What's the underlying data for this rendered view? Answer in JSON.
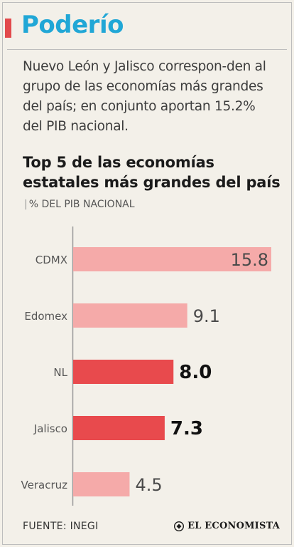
{
  "header": {
    "title": "Poderío"
  },
  "lede": "Nuevo León y Jalisco correspon-den al grupo de las economías más grandes del país; en conjunto aportan 15.2% del PIB nacional.",
  "chart_data": {
    "type": "bar",
    "orientation": "horizontal",
    "title": "Top 5 de las economías estatales más grandes del país",
    "subtitle": "% DEL PIB NACIONAL",
    "categories": [
      "CDMX",
      "Edomex",
      "NL",
      "Jalisco",
      "Veracruz"
    ],
    "values": [
      15.8,
      9.1,
      8.0,
      7.3,
      4.5
    ],
    "value_labels": [
      "15.8",
      "9.1",
      "8.0",
      "7.3",
      "4.5"
    ],
    "highlighted": [
      "NL",
      "Jalisco"
    ],
    "colors": {
      "bar": "#f5aaa9",
      "bar_highlight": "#e84a4d",
      "axis": "#9a9a9a"
    },
    "grid": false,
    "legend": "none"
  },
  "footer": {
    "source": "FUENTE: INEGI",
    "brand": "EL ECONOMISTA"
  }
}
